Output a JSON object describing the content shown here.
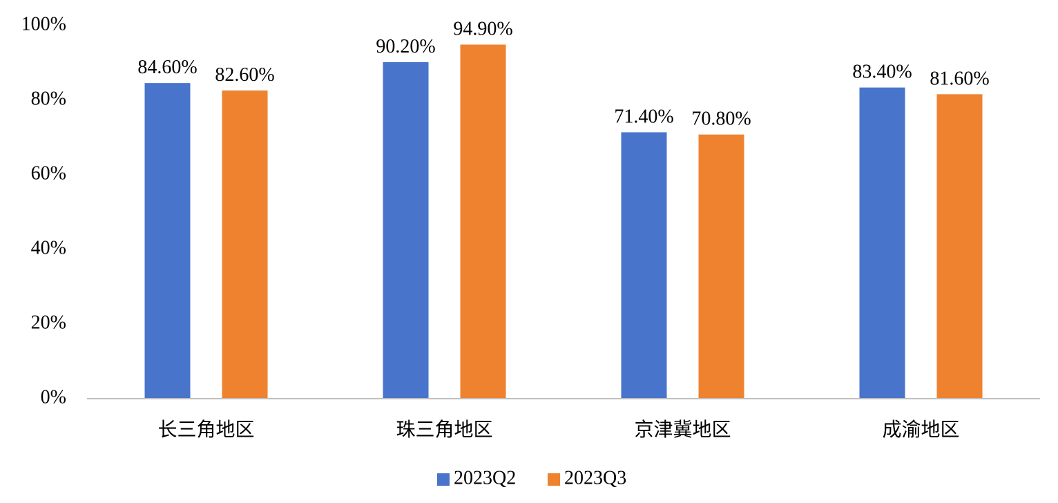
{
  "chart_data": {
    "type": "bar",
    "title": "",
    "xlabel": "",
    "ylabel": "",
    "categories": [
      "长三角地区",
      "珠三角地区",
      "京津冀地区",
      "成渝地区"
    ],
    "series": [
      {
        "name": "2023Q2",
        "color": "#4874CB",
        "values": [
          84.6,
          90.2,
          71.4,
          83.4
        ],
        "labels": [
          "84.60%",
          "90.20%",
          "71.40%",
          "83.40%"
        ]
      },
      {
        "name": "2023Q3",
        "color": "#EE822F",
        "values": [
          82.6,
          94.9,
          70.8,
          81.6
        ],
        "labels": [
          "82.60%",
          "94.90%",
          "70.80%",
          "81.60%"
        ]
      }
    ],
    "ylim": [
      0,
      100
    ],
    "yticks": [
      0,
      20,
      40,
      60,
      80,
      100
    ],
    "ytick_labels": [
      "0%",
      "20%",
      "40%",
      "60%",
      "80%",
      "100%"
    ],
    "grid": false,
    "legend": "bottom"
  }
}
